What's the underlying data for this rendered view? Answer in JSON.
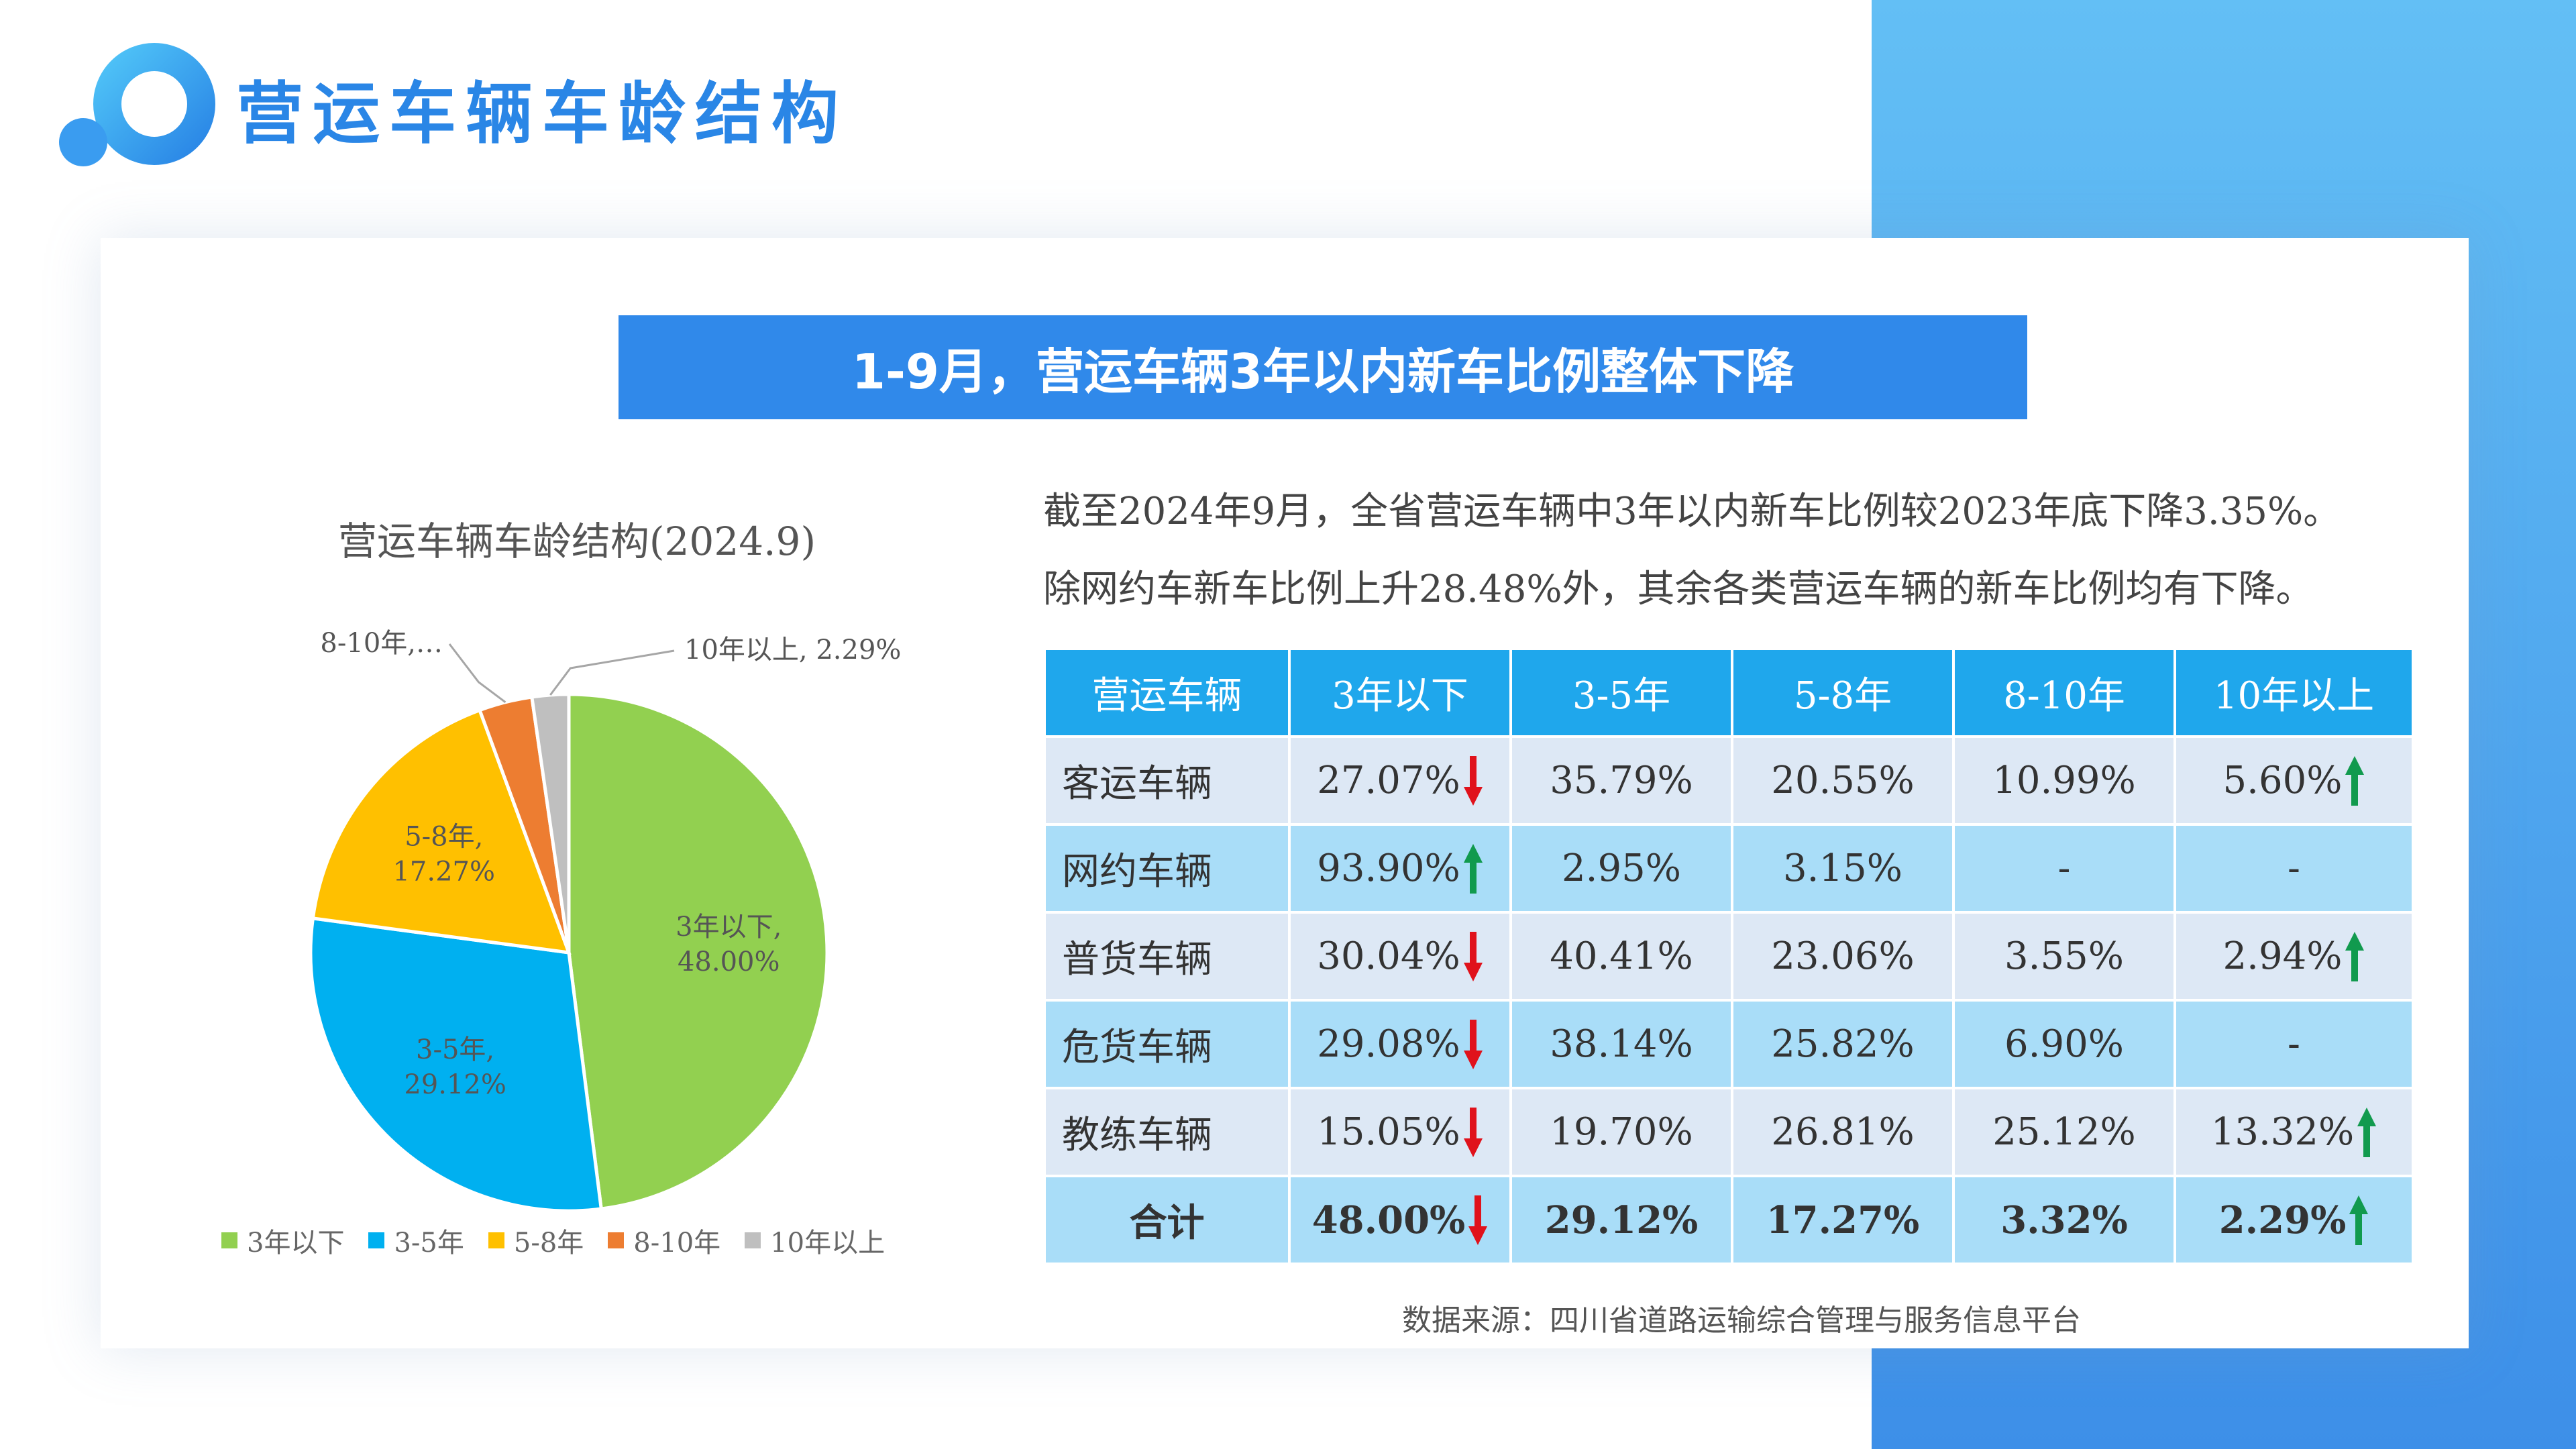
{
  "page_title": "营运车辆车龄结构",
  "banner_text": "1-9月，营运车辆3年以内新车比例整体下降",
  "colors": {
    "title_blue": "#2a86e6",
    "banner_blue": "#3089ea",
    "table_header": "#1fa7ec",
    "down_arrow": "#e0121b",
    "up_arrow": "#119a4e"
  },
  "chart_data": {
    "type": "pie",
    "title": "营运车辆车龄结构(2024.9)",
    "slices": [
      {
        "name": "3年以下",
        "value": 48.0,
        "label_cat": "3年以下,",
        "label_val": "48.00%",
        "color": "#92d050"
      },
      {
        "name": "3-5年",
        "value": 29.12,
        "label_cat": "3-5年,",
        "label_val": "29.12%",
        "color": "#00b0f0"
      },
      {
        "name": "5-8年",
        "value": 17.27,
        "label_cat": "5-8年,",
        "label_val": "17.27%",
        "color": "#ffc000"
      },
      {
        "name": "8-10年",
        "value": 3.32,
        "label_cat": "8-10年,…",
        "label_val": "",
        "color": "#ed7d31"
      },
      {
        "name": "10年以上",
        "value": 2.29,
        "label_cat": "10年以上, 2.29%",
        "label_val": "",
        "color": "#bfbfbf"
      }
    ],
    "legend_position": "bottom"
  },
  "description": {
    "line1": "截至2024年9月，全省营运车辆中3年以内新车比例较2023年底下降3.35%。",
    "line2": "除网约车新车比例上升28.48%外，其余各类营运车辆的新车比例均有下降。"
  },
  "table": {
    "headers": [
      "营运车辆",
      "3年以下",
      "3-5年",
      "5-8年",
      "8-10年",
      "10年以上"
    ],
    "rows": [
      {
        "name": "客运车辆",
        "cells": [
          {
            "v": "27.07%",
            "a": "down"
          },
          {
            "v": "35.79%"
          },
          {
            "v": "20.55%"
          },
          {
            "v": "10.99%"
          },
          {
            "v": "5.60%",
            "a": "up"
          }
        ]
      },
      {
        "name": "网约车辆",
        "cells": [
          {
            "v": "93.90%",
            "a": "up"
          },
          {
            "v": "2.95%"
          },
          {
            "v": "3.15%"
          },
          {
            "v": "-"
          },
          {
            "v": "-"
          }
        ]
      },
      {
        "name": "普货车辆",
        "cells": [
          {
            "v": "30.04%",
            "a": "down"
          },
          {
            "v": "40.41%"
          },
          {
            "v": "23.06%"
          },
          {
            "v": "3.55%"
          },
          {
            "v": "2.94%",
            "a": "up"
          }
        ]
      },
      {
        "name": "危货车辆",
        "cells": [
          {
            "v": "29.08%",
            "a": "down"
          },
          {
            "v": "38.14%"
          },
          {
            "v": "25.82%"
          },
          {
            "v": "6.90%"
          },
          {
            "v": "-"
          }
        ]
      },
      {
        "name": "教练车辆",
        "cells": [
          {
            "v": "15.05%",
            "a": "down"
          },
          {
            "v": "19.70%"
          },
          {
            "v": "26.81%"
          },
          {
            "v": "25.12%"
          },
          {
            "v": "13.32%",
            "a": "up"
          }
        ]
      },
      {
        "name": "合计",
        "total": true,
        "cells": [
          {
            "v": "48.00%",
            "a": "down"
          },
          {
            "v": "29.12%"
          },
          {
            "v": "17.27%"
          },
          {
            "v": "3.32%"
          },
          {
            "v": "2.29%",
            "a": "up"
          }
        ]
      }
    ]
  },
  "source": "数据来源：四川省道路运输综合管理与服务信息平台"
}
